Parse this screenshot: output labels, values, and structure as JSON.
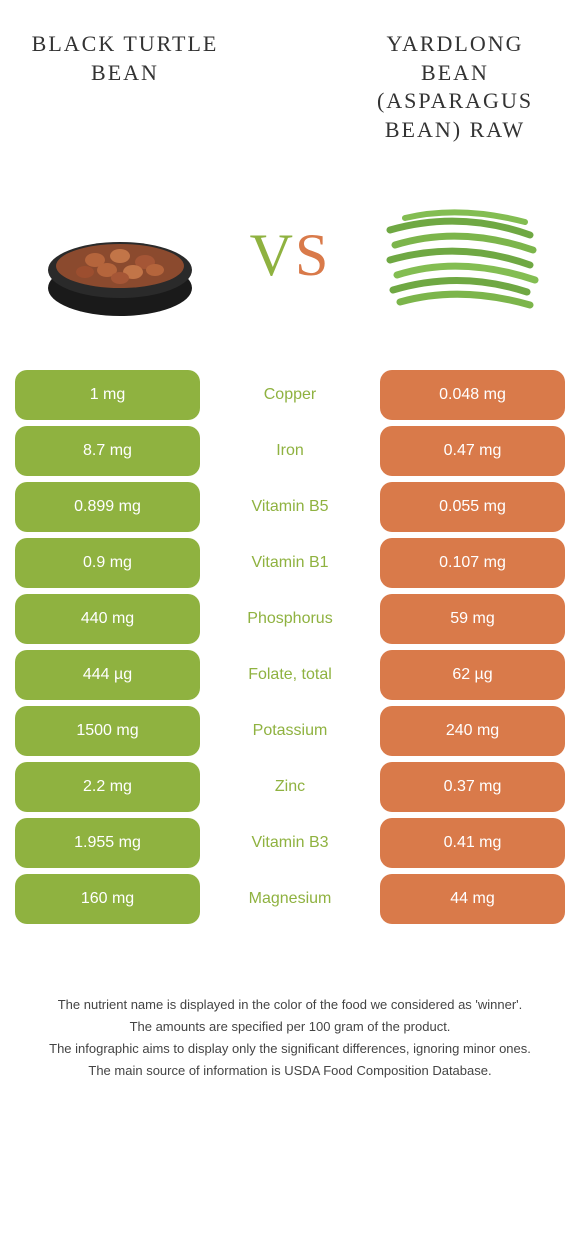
{
  "left": {
    "title": "BLACK TURTLE BEAN"
  },
  "right": {
    "title": "YARDLONG BEAN (ASPARAGUS BEAN) RAW"
  },
  "vs": {
    "v": "V",
    "s": "S"
  },
  "colors": {
    "green": "#8fb240",
    "orange": "#d97a4a",
    "text": "#333333",
    "bg": "#ffffff"
  },
  "rows": [
    {
      "left": "1 mg",
      "name": "Copper",
      "right": "0.048 mg",
      "winner": "left"
    },
    {
      "left": "8.7 mg",
      "name": "Iron",
      "right": "0.47 mg",
      "winner": "left"
    },
    {
      "left": "0.899 mg",
      "name": "Vitamin B5",
      "right": "0.055 mg",
      "winner": "left"
    },
    {
      "left": "0.9 mg",
      "name": "Vitamin B1",
      "right": "0.107 mg",
      "winner": "left"
    },
    {
      "left": "440 mg",
      "name": "Phosphorus",
      "right": "59 mg",
      "winner": "left"
    },
    {
      "left": "444 µg",
      "name": "Folate, total",
      "right": "62 µg",
      "winner": "left"
    },
    {
      "left": "1500 mg",
      "name": "Potassium",
      "right": "240 mg",
      "winner": "left"
    },
    {
      "left": "2.2 mg",
      "name": "Zinc",
      "right": "0.37 mg",
      "winner": "left"
    },
    {
      "left": "1.955 mg",
      "name": "Vitamin B3",
      "right": "0.41 mg",
      "winner": "left"
    },
    {
      "left": "160 mg",
      "name": "Magnesium",
      "right": "44 mg",
      "winner": "left"
    }
  ],
  "footer": {
    "l1": "The nutrient name is displayed in the color of the food we considered as 'winner'.",
    "l2": "The amounts are specified per 100 gram of the product.",
    "l3": "The infographic aims to display only the significant differences, ignoring minor ones.",
    "l4": "The main source of information is USDA Food Composition Database."
  }
}
